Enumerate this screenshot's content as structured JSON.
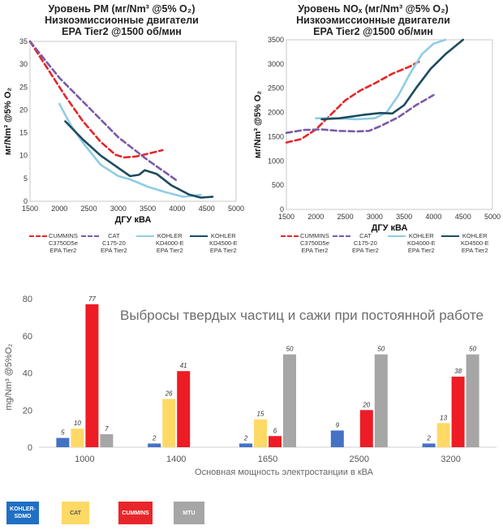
{
  "colors": {
    "cummins": "#e5262a",
    "cat": "#7b5aa6",
    "kd4000": "#8fcde3",
    "kd4500": "#1e4b5f",
    "kohler_bar": "#4472c4",
    "cat_bar": "#ffd966",
    "cummins_bar": "#ee1c24",
    "mtu_bar": "#a6a6a6"
  },
  "legend_bottom": [
    {
      "label": "KOHLER-SDMO",
      "color": "#1f6fc5"
    },
    {
      "label": "CAT",
      "color": "#ffd966"
    },
    {
      "label": "CUMMINS",
      "color": "#e8262a"
    },
    {
      "label": "MTU",
      "color": "#a6a6a6"
    }
  ],
  "chart_data": [
    {
      "type": "line",
      "title_lines": [
        "Уровень PM (мг/Nm³ @5% O₂)",
        "Низкоэмиссионные двигатели",
        "EPA Tier2 @1500 об/мин"
      ],
      "xlabel": "ДГУ кВА",
      "ylabel": "мг/Nm³ @5% O₂",
      "xlim": [
        1500,
        5000
      ],
      "ylim": [
        0,
        35
      ],
      "x_ticks": [
        "1500",
        "2000",
        "2500",
        "3000",
        "3500",
        "4000",
        "4500",
        "5000"
      ],
      "y_ticks": [
        "0",
        "5",
        "10",
        "15",
        "20",
        "25",
        "30",
        "35"
      ],
      "series": [
        {
          "name": "CUMMINS C3750D5e EPA Tier2",
          "legend": [
            "CUMMINS",
            "C3750D5e",
            "EPA Tier2"
          ],
          "style": "dashed",
          "points": [
            [
              1500,
              35
            ],
            [
              1800,
              29
            ],
            [
              2100,
              23
            ],
            [
              2400,
              17.5
            ],
            [
              2700,
              13
            ],
            [
              2950,
              10.2
            ],
            [
              3100,
              9.6
            ],
            [
              3300,
              9.8
            ],
            [
              3500,
              10.4
            ],
            [
              3750,
              11.2
            ]
          ]
        },
        {
          "name": "CAT C175-20 EPA Tier2",
          "legend": [
            "CAT",
            "C175-20",
            "EPA Tier2"
          ],
          "style": "dashed",
          "points": [
            [
              1500,
              35
            ],
            [
              2000,
              27
            ],
            [
              2500,
              20.5
            ],
            [
              3000,
              14
            ],
            [
              3500,
              9
            ],
            [
              4000,
              4.5
            ]
          ]
        },
        {
          "name": "KOHLER KD4000-E EPA Tier2",
          "legend": [
            "KOHLER",
            "KD4000-E",
            "EPA Tier2"
          ],
          "style": "solid",
          "points": [
            [
              2000,
              21.3
            ],
            [
              2200,
              16.5
            ],
            [
              2400,
              12.8
            ],
            [
              2700,
              8
            ],
            [
              3000,
              5.5
            ],
            [
              3200,
              4.8
            ],
            [
              3500,
              3.2
            ],
            [
              3800,
              2
            ],
            [
              4100,
              1
            ],
            [
              4400,
              1.4
            ]
          ]
        },
        {
          "name": "KOHLER KD4500-E EPA Tier2",
          "legend": [
            "KOHLER",
            "KD4500-E",
            "EPA Tier2"
          ],
          "style": "solid",
          "points": [
            [
              2100,
              17.5
            ],
            [
              2400,
              13.5
            ],
            [
              2700,
              10
            ],
            [
              3000,
              7.3
            ],
            [
              3200,
              5.5
            ],
            [
              3350,
              5.8
            ],
            [
              3450,
              6.8
            ],
            [
              3650,
              6
            ],
            [
              3900,
              3.5
            ],
            [
              4200,
              1.5
            ],
            [
              4400,
              0.8
            ],
            [
              4600,
              1
            ]
          ]
        }
      ]
    },
    {
      "type": "line",
      "title_lines": [
        "Уровень NOₓ (мг/Nm³ @5% O₂)",
        "Низкоэмиссионные двигатели",
        "EPA Tier2 @1500 об/мин"
      ],
      "xlabel": "ДГУ кВА",
      "ylabel": "мг/Nm³ @5% O₂",
      "xlim": [
        1500,
        5000
      ],
      "ylim": [
        0,
        3500
      ],
      "x_ticks": [
        "1500",
        "2000",
        "2500",
        "3000",
        "3500",
        "4000",
        "4500",
        "5000"
      ],
      "y_ticks": [
        "0",
        "500",
        "1000",
        "1500",
        "2000",
        "2500",
        "3000",
        "3500"
      ],
      "series": [
        {
          "name": "CUMMINS C3750D5e EPA Tier2",
          "legend": [
            "CUMMINS",
            "C3750D5e",
            "EPA Tier2"
          ],
          "style": "dashed",
          "points": [
            [
              1500,
              1380
            ],
            [
              1750,
              1450
            ],
            [
              2000,
              1650
            ],
            [
              2250,
              1950
            ],
            [
              2500,
              2250
            ],
            [
              2750,
              2450
            ],
            [
              3000,
              2600
            ],
            [
              3300,
              2800
            ],
            [
              3600,
              2950
            ],
            [
              3750,
              3050
            ]
          ]
        },
        {
          "name": "CAT C175-20 EPA Tier2",
          "legend": [
            "CAT",
            "C175-20",
            "EPA Tier2"
          ],
          "style": "dashed",
          "points": [
            [
              1500,
              1580
            ],
            [
              1800,
              1640
            ],
            [
              2100,
              1650
            ],
            [
              2400,
              1620
            ],
            [
              2700,
              1610
            ],
            [
              2900,
              1620
            ],
            [
              3100,
              1720
            ],
            [
              3400,
              1900
            ],
            [
              3700,
              2150
            ],
            [
              4000,
              2360
            ]
          ]
        },
        {
          "name": "KOHLER KD4000-E EPA Tier2",
          "legend": [
            "KOHLER",
            "KD4000-E",
            "EPA Tier2"
          ],
          "style": "solid",
          "points": [
            [
              2000,
              1880
            ],
            [
              2300,
              1880
            ],
            [
              2700,
              1860
            ],
            [
              3000,
              1880
            ],
            [
              3200,
              2000
            ],
            [
              3400,
              2350
            ],
            [
              3600,
              2800
            ],
            [
              3800,
              3200
            ],
            [
              4000,
              3420
            ],
            [
              4200,
              3500
            ]
          ]
        },
        {
          "name": "KOHLER KD4500-E EPA Tier2",
          "legend": [
            "KOHLER",
            "KD4500-E",
            "EPA Tier2"
          ],
          "style": "solid",
          "points": [
            [
              2100,
              1860
            ],
            [
              2400,
              1880
            ],
            [
              2800,
              1950
            ],
            [
              3100,
              1990
            ],
            [
              3300,
              1980
            ],
            [
              3500,
              2150
            ],
            [
              3700,
              2500
            ],
            [
              3950,
              2900
            ],
            [
              4200,
              3200
            ],
            [
              4500,
              3500
            ]
          ]
        }
      ]
    },
    {
      "type": "bar",
      "title": "Выбросы твердых частиц и сажи при постоянной работе",
      "xlabel": "Основная мощность электростанции в кВА",
      "ylabel": "mg/Nm³ @5%O₂",
      "ylim": [
        0,
        80
      ],
      "y_ticks": [
        "0",
        "20",
        "40",
        "60",
        "80"
      ],
      "categories": [
        "1000",
        "1400",
        "1650",
        "2500",
        "3200"
      ],
      "series": [
        {
          "name": "KOHLER-SDMO",
          "values": [
            5,
            2,
            2,
            9,
            2
          ],
          "labels": [
            "5",
            "2",
            "2",
            "9",
            "2"
          ]
        },
        {
          "name": "CAT",
          "values": [
            10,
            26,
            15,
            null,
            13
          ],
          "labels": [
            "10",
            "26",
            "15",
            "",
            "13"
          ]
        },
        {
          "name": "CUMMINS",
          "values": [
            77,
            41,
            6,
            20,
            38
          ],
          "labels": [
            "77",
            "41",
            "6",
            "20",
            "38"
          ]
        },
        {
          "name": "MTU",
          "values": [
            7,
            null,
            50,
            50,
            50
          ],
          "labels": [
            "7",
            "",
            "50",
            "50",
            "50"
          ]
        }
      ]
    }
  ]
}
